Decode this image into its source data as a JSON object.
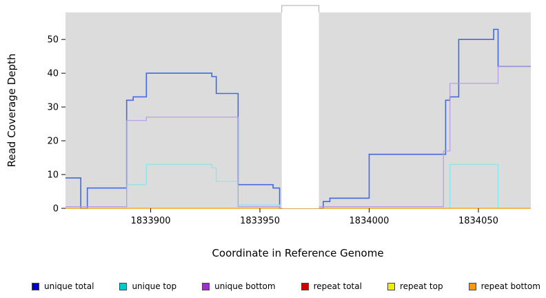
{
  "chart_data": {
    "type": "line",
    "subtype": "step-after",
    "title": "",
    "xlabel": "Coordinate in Reference Genome",
    "ylabel": "Read Coverage Depth",
    "xlim": [
      1833861,
      1834074
    ],
    "ylim": [
      0,
      58
    ],
    "xticks": [
      1833900,
      1833950,
      1834000,
      1834050
    ],
    "yticks": [
      0,
      10,
      20,
      30,
      40,
      50
    ],
    "panel_bg": "#dcdcdc",
    "outer_bg": "#ffffff",
    "grid": false,
    "legend_position": "bottom",
    "gap_region": {
      "x0": 1833960,
      "x1": 1833977,
      "fill": "#ffffff"
    },
    "series": [
      {
        "name": "unique total",
        "line_color": "#4169e1",
        "line_width": 1.6,
        "points": [
          [
            1833861,
            9
          ],
          [
            1833868,
            0
          ],
          [
            1833871,
            6
          ],
          [
            1833889,
            32
          ],
          [
            1833892,
            33
          ],
          [
            1833898,
            40
          ],
          [
            1833928,
            39
          ],
          [
            1833930,
            34
          ],
          [
            1833940,
            7
          ],
          [
            1833956,
            6
          ],
          [
            1833959,
            0
          ],
          [
            1833977,
            0
          ],
          [
            1833979,
            2
          ],
          [
            1833982,
            3
          ],
          [
            1834000,
            16
          ],
          [
            1834035,
            32
          ],
          [
            1834037,
            33
          ],
          [
            1834041,
            50
          ],
          [
            1834057,
            53
          ],
          [
            1834059,
            42
          ],
          [
            1834074,
            42
          ]
        ]
      },
      {
        "name": "unique top",
        "line_color": "#86e6ea",
        "line_width": 1.2,
        "points": [
          [
            1833861,
            0
          ],
          [
            1833889,
            7
          ],
          [
            1833898,
            13
          ],
          [
            1833928,
            12
          ],
          [
            1833930,
            8
          ],
          [
            1833940,
            1
          ],
          [
            1833959,
            0
          ],
          [
            1833977,
            0
          ],
          [
            1834037,
            13
          ],
          [
            1834059,
            0
          ],
          [
            1834074,
            0
          ]
        ]
      },
      {
        "name": "unique bottom",
        "line_color": "#b79ae0",
        "line_width": 1.2,
        "points": [
          [
            1833861,
            0.5
          ],
          [
            1833889,
            26
          ],
          [
            1833898,
            27
          ],
          [
            1833940,
            0.5
          ],
          [
            1833959,
            0
          ],
          [
            1833977,
            0.5
          ],
          [
            1834034,
            17
          ],
          [
            1834037,
            37
          ],
          [
            1834059,
            42
          ],
          [
            1834074,
            42
          ]
        ]
      },
      {
        "name": "repeat total",
        "line_color": "#cc0000",
        "line_width": 1.1,
        "points": [
          [
            1833861,
            0
          ],
          [
            1833959,
            0
          ],
          [
            1833977,
            0
          ],
          [
            1834074,
            0
          ]
        ]
      },
      {
        "name": "repeat top",
        "line_color": "#eeee00",
        "line_width": 1.1,
        "points": [
          [
            1833861,
            0
          ],
          [
            1833959,
            0
          ],
          [
            1833977,
            0
          ],
          [
            1834074,
            0
          ]
        ]
      },
      {
        "name": "repeat bottom",
        "line_color": "#ff9900",
        "line_width": 1.2,
        "points": [
          [
            1833861,
            0
          ],
          [
            1833959,
            0
          ],
          [
            1833977,
            0
          ],
          [
            1834074,
            0
          ]
        ]
      }
    ]
  },
  "legend": {
    "items": [
      {
        "label": "unique total",
        "color": "#0000cc"
      },
      {
        "label": "unique top",
        "color": "#00cccc"
      },
      {
        "label": "unique bottom",
        "color": "#9933cc"
      },
      {
        "label": "repeat total",
        "color": "#cc0000"
      },
      {
        "label": "repeat top",
        "color": "#eeee00"
      },
      {
        "label": "repeat bottom",
        "color": "#ff9900"
      }
    ]
  }
}
